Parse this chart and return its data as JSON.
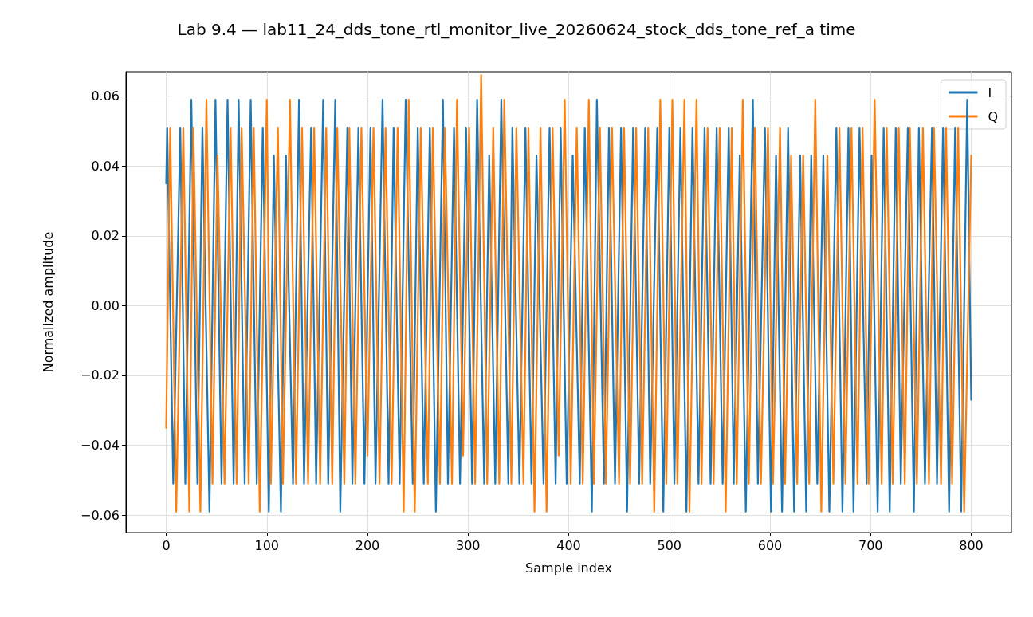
{
  "chart_data": {
    "type": "line",
    "title": "Lab 9.4 — lab11_24_dds_tone_rtl_monitor_live_20260624_stock_dds_tone_ref_a time",
    "xlabel": "Sample index",
    "ylabel": "Normalized amplitude",
    "xlim": [
      -40,
      840
    ],
    "xticks": [
      0,
      100,
      200,
      300,
      400,
      500,
      600,
      700,
      800
    ],
    "ylim": [
      -0.065,
      0.067
    ],
    "yticks": [
      {
        "value": -0.06,
        "label": "−0.06"
      },
      {
        "value": -0.04,
        "label": "−0.04"
      },
      {
        "value": -0.02,
        "label": "−0.02"
      },
      {
        "value": 0,
        "label": "0.00"
      },
      {
        "value": 0.02,
        "label": "0.02"
      },
      {
        "value": 0.04,
        "label": "0.04"
      },
      {
        "value": 0.06,
        "label": "0.06"
      }
    ],
    "grid": true,
    "legend": "top right",
    "marker": "none",
    "line_style": "solid",
    "series": [
      {
        "name": "I",
        "color": "#1f77b4",
        "x": [
          0,
          1,
          7,
          14,
          19,
          25,
          31,
          36,
          43,
          49,
          55,
          61,
          67,
          72,
          78,
          84,
          90,
          96,
          102,
          107,
          114,
          119,
          126,
          132,
          137,
          144,
          149,
          156,
          161,
          168,
          173,
          180,
          185,
          191,
          197,
          203,
          208,
          215,
          221,
          226,
          232,
          238,
          245,
          250,
          256,
          262,
          268,
          275,
          280,
          286,
          292,
          298,
          304,
          309,
          316,
          321,
          327,
          333,
          340,
          344,
          351,
          357,
          363,
          368,
          375,
          381,
          387,
          392,
          398,
          404,
          411,
          416,
          423,
          428,
          435,
          440,
          446,
          452,
          458,
          464,
          470,
          476,
          481,
          488,
          494,
          500,
          505,
          511,
          517,
          523,
          529,
          535,
          541,
          547,
          553,
          559,
          564,
          570,
          576,
          583,
          588,
          595,
          601,
          606,
          612,
          618,
          624,
          630,
          636,
          641,
          647,
          653,
          659,
          666,
          672,
          678,
          683,
          689,
          696,
          701,
          707,
          713,
          719,
          725,
          730,
          737,
          743,
          748,
          754,
          761,
          766,
          772,
          778,
          784,
          790,
          796,
          800
        ],
        "values": [
          0.035,
          0.051,
          -0.051,
          0.051,
          -0.051,
          0.059,
          -0.051,
          0.051,
          -0.059,
          0.059,
          -0.051,
          0.059,
          -0.051,
          0.059,
          -0.051,
          0.059,
          -0.051,
          0.051,
          -0.059,
          0.043,
          -0.059,
          0.043,
          -0.051,
          0.059,
          -0.051,
          0.051,
          -0.051,
          0.059,
          -0.051,
          0.059,
          -0.059,
          0.051,
          -0.051,
          0.051,
          -0.051,
          0.051,
          -0.051,
          0.059,
          -0.051,
          0.051,
          -0.051,
          0.059,
          -0.051,
          0.051,
          -0.051,
          0.051,
          -0.059,
          0.059,
          -0.051,
          0.051,
          -0.051,
          0.051,
          -0.051,
          0.059,
          -0.051,
          0.043,
          -0.051,
          0.059,
          -0.051,
          0.051,
          -0.051,
          0.051,
          -0.051,
          0.043,
          -0.051,
          0.051,
          -0.051,
          0.051,
          -0.051,
          0.043,
          -0.051,
          0.051,
          -0.059,
          0.059,
          -0.051,
          0.051,
          -0.051,
          0.051,
          -0.059,
          0.051,
          -0.051,
          0.051,
          -0.051,
          0.051,
          -0.059,
          0.051,
          -0.051,
          0.051,
          -0.059,
          0.051,
          -0.051,
          0.051,
          -0.051,
          0.051,
          -0.051,
          0.051,
          -0.051,
          0.043,
          -0.059,
          0.059,
          -0.051,
          0.051,
          -0.059,
          0.043,
          -0.059,
          0.051,
          -0.059,
          0.043,
          -0.059,
          0.043,
          -0.051,
          0.043,
          -0.059,
          0.051,
          -0.059,
          0.051,
          -0.059,
          0.051,
          -0.051,
          0.043,
          -0.059,
          0.051,
          -0.059,
          0.051,
          -0.051,
          0.051,
          -0.059,
          0.051,
          -0.051,
          0.051,
          -0.051,
          0.051,
          -0.059,
          0.051,
          -0.059,
          0.059,
          -0.027
        ]
      },
      {
        "name": "Q",
        "color": "#ff7f0e",
        "x": [
          0,
          4,
          10,
          17,
          23,
          27,
          34,
          40,
          46,
          51,
          58,
          64,
          70,
          75,
          82,
          87,
          93,
          100,
          104,
          111,
          116,
          123,
          129,
          135,
          141,
          147,
          153,
          159,
          165,
          170,
          177,
          182,
          188,
          194,
          200,
          206,
          212,
          218,
          224,
          230,
          236,
          241,
          247,
          253,
          260,
          265,
          272,
          277,
          284,
          289,
          295,
          301,
          307,
          313,
          319,
          325,
          331,
          336,
          343,
          348,
          355,
          360,
          366,
          372,
          378,
          384,
          390,
          396,
          402,
          408,
          414,
          420,
          425,
          431,
          437,
          443,
          450,
          455,
          461,
          467,
          473,
          479,
          485,
          491,
          497,
          503,
          508,
          515,
          520,
          527,
          532,
          538,
          544,
          550,
          556,
          562,
          567,
          573,
          579,
          585,
          591,
          598,
          603,
          610,
          615,
          621,
          627,
          633,
          639,
          645,
          651,
          657,
          663,
          669,
          675,
          681,
          687,
          692,
          698,
          704,
          711,
          716,
          722,
          728,
          734,
          739,
          746,
          752,
          758,
          763,
          770,
          775,
          781,
          787,
          793,
          800
        ],
        "values": [
          -0.035,
          0.051,
          -0.059,
          0.051,
          -0.059,
          0.051,
          -0.059,
          0.059,
          -0.051,
          0.043,
          -0.051,
          0.051,
          -0.051,
          0.051,
          -0.051,
          0.051,
          -0.059,
          0.059,
          -0.051,
          0.051,
          -0.051,
          0.059,
          -0.051,
          0.051,
          -0.051,
          0.051,
          -0.051,
          0.051,
          -0.051,
          0.051,
          -0.051,
          0.051,
          -0.051,
          0.051,
          -0.043,
          0.051,
          -0.051,
          0.051,
          -0.051,
          0.051,
          -0.059,
          0.059,
          -0.059,
          0.051,
          -0.051,
          0.051,
          -0.051,
          0.051,
          -0.051,
          0.059,
          -0.043,
          0.051,
          -0.051,
          0.066,
          -0.051,
          0.051,
          -0.051,
          0.059,
          -0.051,
          0.051,
          -0.051,
          0.051,
          -0.059,
          0.051,
          -0.059,
          0.051,
          -0.043,
          0.059,
          -0.051,
          0.051,
          -0.051,
          0.059,
          -0.051,
          0.051,
          -0.051,
          0.051,
          -0.051,
          0.051,
          -0.051,
          0.051,
          -0.051,
          0.051,
          -0.059,
          0.059,
          -0.051,
          0.059,
          -0.051,
          0.059,
          -0.059,
          0.059,
          -0.051,
          0.051,
          -0.051,
          0.051,
          -0.059,
          0.051,
          -0.051,
          0.059,
          -0.051,
          0.051,
          -0.051,
          0.051,
          -0.051,
          0.051,
          -0.051,
          0.043,
          -0.051,
          0.043,
          -0.051,
          0.059,
          -0.059,
          0.043,
          -0.051,
          0.051,
          -0.051,
          0.051,
          -0.051,
          0.051,
          -0.051,
          0.059,
          -0.051,
          0.051,
          -0.051,
          0.051,
          -0.051,
          0.051,
          -0.051,
          0.051,
          -0.051,
          0.051,
          -0.051,
          0.051,
          -0.051,
          0.051,
          -0.059,
          0.043
        ]
      }
    ]
  }
}
